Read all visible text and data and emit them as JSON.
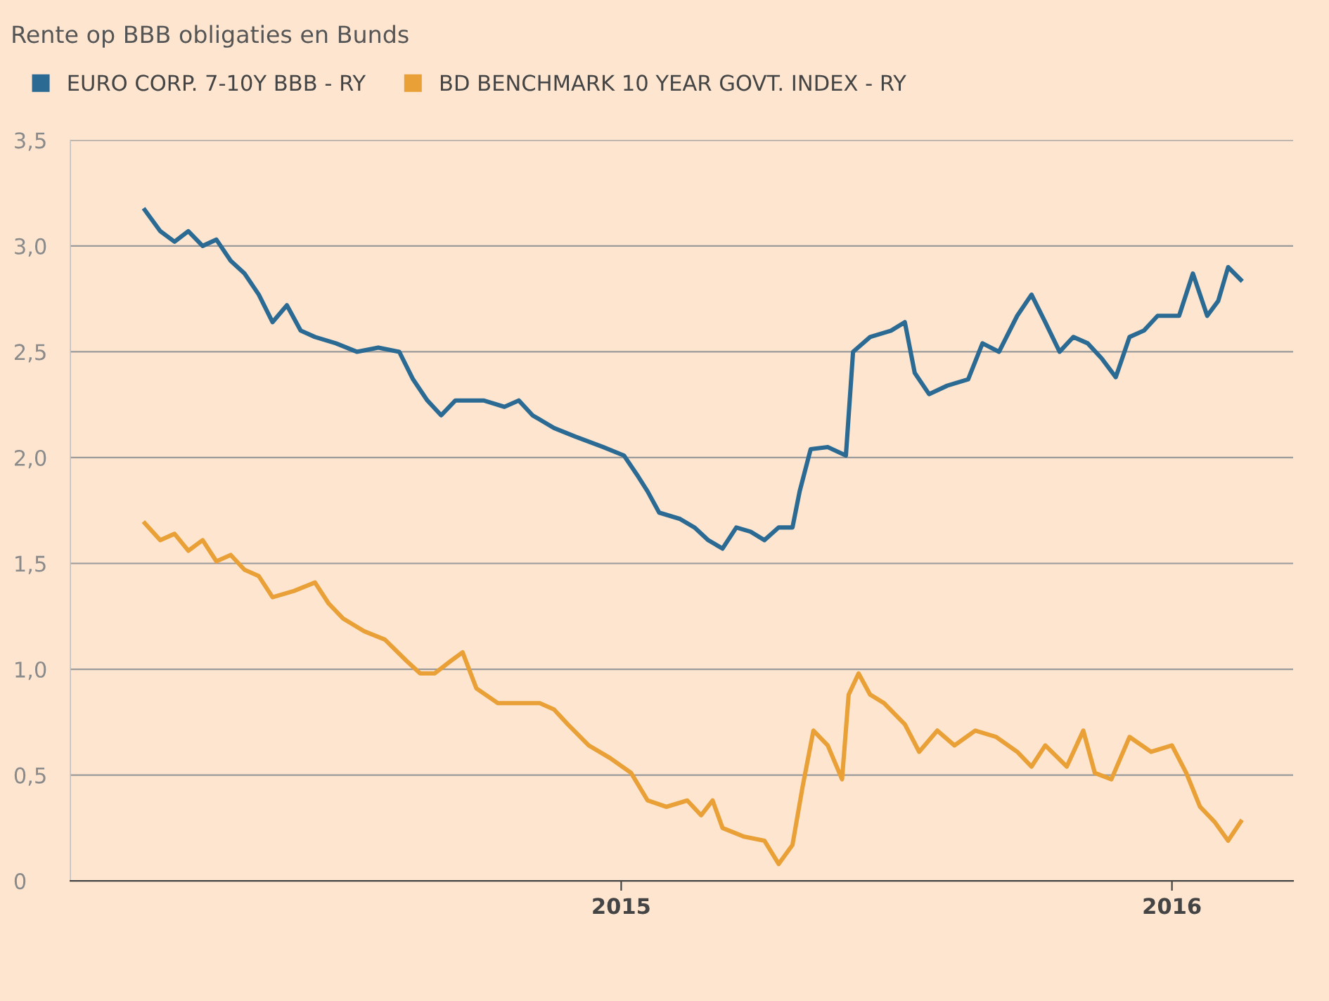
{
  "chart_data": {
    "type": "line",
    "title": "Rente op BBB obligaties en Bunds",
    "xlim": [
      2014.0,
      2016.22
    ],
    "xticks": [
      {
        "value": 2015,
        "label": "2015"
      },
      {
        "value": 2016,
        "label": "2016"
      }
    ],
    "ylim": [
      0,
      3.5
    ],
    "yticks": [
      0,
      {
        "value": 0.5,
        "label": "0,5"
      },
      {
        "value": 1.0,
        "label": "1,0"
      },
      {
        "value": 1.5,
        "label": "1,5"
      },
      {
        "value": 2.0,
        "label": "2,0"
      },
      {
        "value": 2.5,
        "label": "2,5"
      },
      {
        "value": 3.0,
        "label": "3,0"
      },
      {
        "value": 3.5,
        "label": "3,5"
      }
    ],
    "grid": "y",
    "legend": "top left",
    "marker": "none",
    "line_style": "solid",
    "series": [
      {
        "name": "EURO CORP. 7-10Y BBB - RY",
        "color": "#2b6a93",
        "x": [
          2014.135,
          2014.163,
          2014.189,
          2014.214,
          2014.24,
          2014.265,
          2014.291,
          2014.316,
          2014.342,
          2014.367,
          2014.393,
          2014.418,
          2014.444,
          2014.482,
          2014.52,
          2014.559,
          2014.597,
          2014.622,
          2014.648,
          2014.673,
          2014.699,
          2014.75,
          2014.788,
          2014.814,
          2014.839,
          2014.878,
          2014.916,
          2014.967,
          2015.005,
          2015.031,
          2015.048,
          2015.069,
          2015.107,
          2015.133,
          2015.158,
          2015.184,
          2015.209,
          2015.235,
          2015.26,
          2015.286,
          2015.311,
          2015.324,
          2015.344,
          2015.375,
          2015.408,
          2015.421,
          2015.452,
          2015.49,
          2015.515,
          2015.533,
          2015.559,
          2015.592,
          2015.63,
          2015.656,
          2015.686,
          2015.719,
          2015.745,
          2015.77,
          2015.796,
          2015.821,
          2015.847,
          2015.872,
          2015.898,
          2015.923,
          2015.949,
          2015.974,
          2016.013,
          2016.038,
          2016.064,
          2016.084,
          2016.102,
          2016.125
        ],
        "values": [
          3.17,
          3.07,
          3.02,
          3.07,
          3.0,
          3.03,
          2.93,
          2.87,
          2.77,
          2.64,
          2.72,
          2.6,
          2.57,
          2.54,
          2.5,
          2.52,
          2.5,
          2.37,
          2.27,
          2.2,
          2.27,
          2.27,
          2.24,
          2.27,
          2.2,
          2.14,
          2.1,
          2.05,
          2.01,
          1.91,
          1.84,
          1.74,
          1.71,
          1.67,
          1.61,
          1.57,
          1.67,
          1.65,
          1.61,
          1.67,
          1.67,
          1.84,
          2.04,
          2.05,
          2.01,
          2.5,
          2.57,
          2.6,
          2.64,
          2.4,
          2.3,
          2.34,
          2.37,
          2.54,
          2.5,
          2.67,
          2.77,
          2.64,
          2.5,
          2.57,
          2.54,
          2.47,
          2.38,
          2.57,
          2.6,
          2.67,
          2.67,
          2.87,
          2.67,
          2.74,
          2.9,
          2.84
        ]
      },
      {
        "name": "BD BENCHMARK 10 YEAR GOVT. INDEX - RY",
        "color": "#e9a037",
        "x": [
          2014.135,
          2014.163,
          2014.189,
          2014.214,
          2014.24,
          2014.265,
          2014.291,
          2014.316,
          2014.342,
          2014.367,
          2014.406,
          2014.444,
          2014.469,
          2014.495,
          2014.533,
          2014.571,
          2014.61,
          2014.635,
          2014.661,
          2014.691,
          2014.712,
          2014.737,
          2014.776,
          2014.814,
          2014.852,
          2014.878,
          2014.903,
          2014.941,
          2014.98,
          2015.018,
          2015.048,
          2015.082,
          2015.12,
          2015.145,
          2015.166,
          2015.184,
          2015.222,
          2015.26,
          2015.286,
          2015.311,
          2015.329,
          2015.349,
          2015.375,
          2015.401,
          2015.413,
          2015.431,
          2015.452,
          2015.477,
          2015.515,
          2015.541,
          2015.574,
          2015.605,
          2015.643,
          2015.681,
          2015.719,
          2015.745,
          2015.77,
          2015.809,
          2015.839,
          2015.86,
          2015.89,
          2015.923,
          2015.962,
          2016.0,
          2016.026,
          2016.051,
          2016.077,
          2016.102,
          2016.125
        ],
        "values": [
          1.69,
          1.61,
          1.64,
          1.56,
          1.61,
          1.51,
          1.54,
          1.47,
          1.44,
          1.34,
          1.37,
          1.41,
          1.31,
          1.24,
          1.18,
          1.14,
          1.04,
          0.98,
          0.98,
          1.04,
          1.08,
          0.91,
          0.84,
          0.84,
          0.84,
          0.81,
          0.74,
          0.64,
          0.58,
          0.51,
          0.38,
          0.35,
          0.38,
          0.31,
          0.38,
          0.25,
          0.21,
          0.19,
          0.08,
          0.17,
          0.44,
          0.71,
          0.64,
          0.48,
          0.88,
          0.98,
          0.88,
          0.84,
          0.74,
          0.61,
          0.71,
          0.64,
          0.71,
          0.68,
          0.61,
          0.54,
          0.64,
          0.54,
          0.71,
          0.51,
          0.48,
          0.68,
          0.61,
          0.64,
          0.51,
          0.35,
          0.28,
          0.19,
          0.28
        ]
      }
    ]
  }
}
